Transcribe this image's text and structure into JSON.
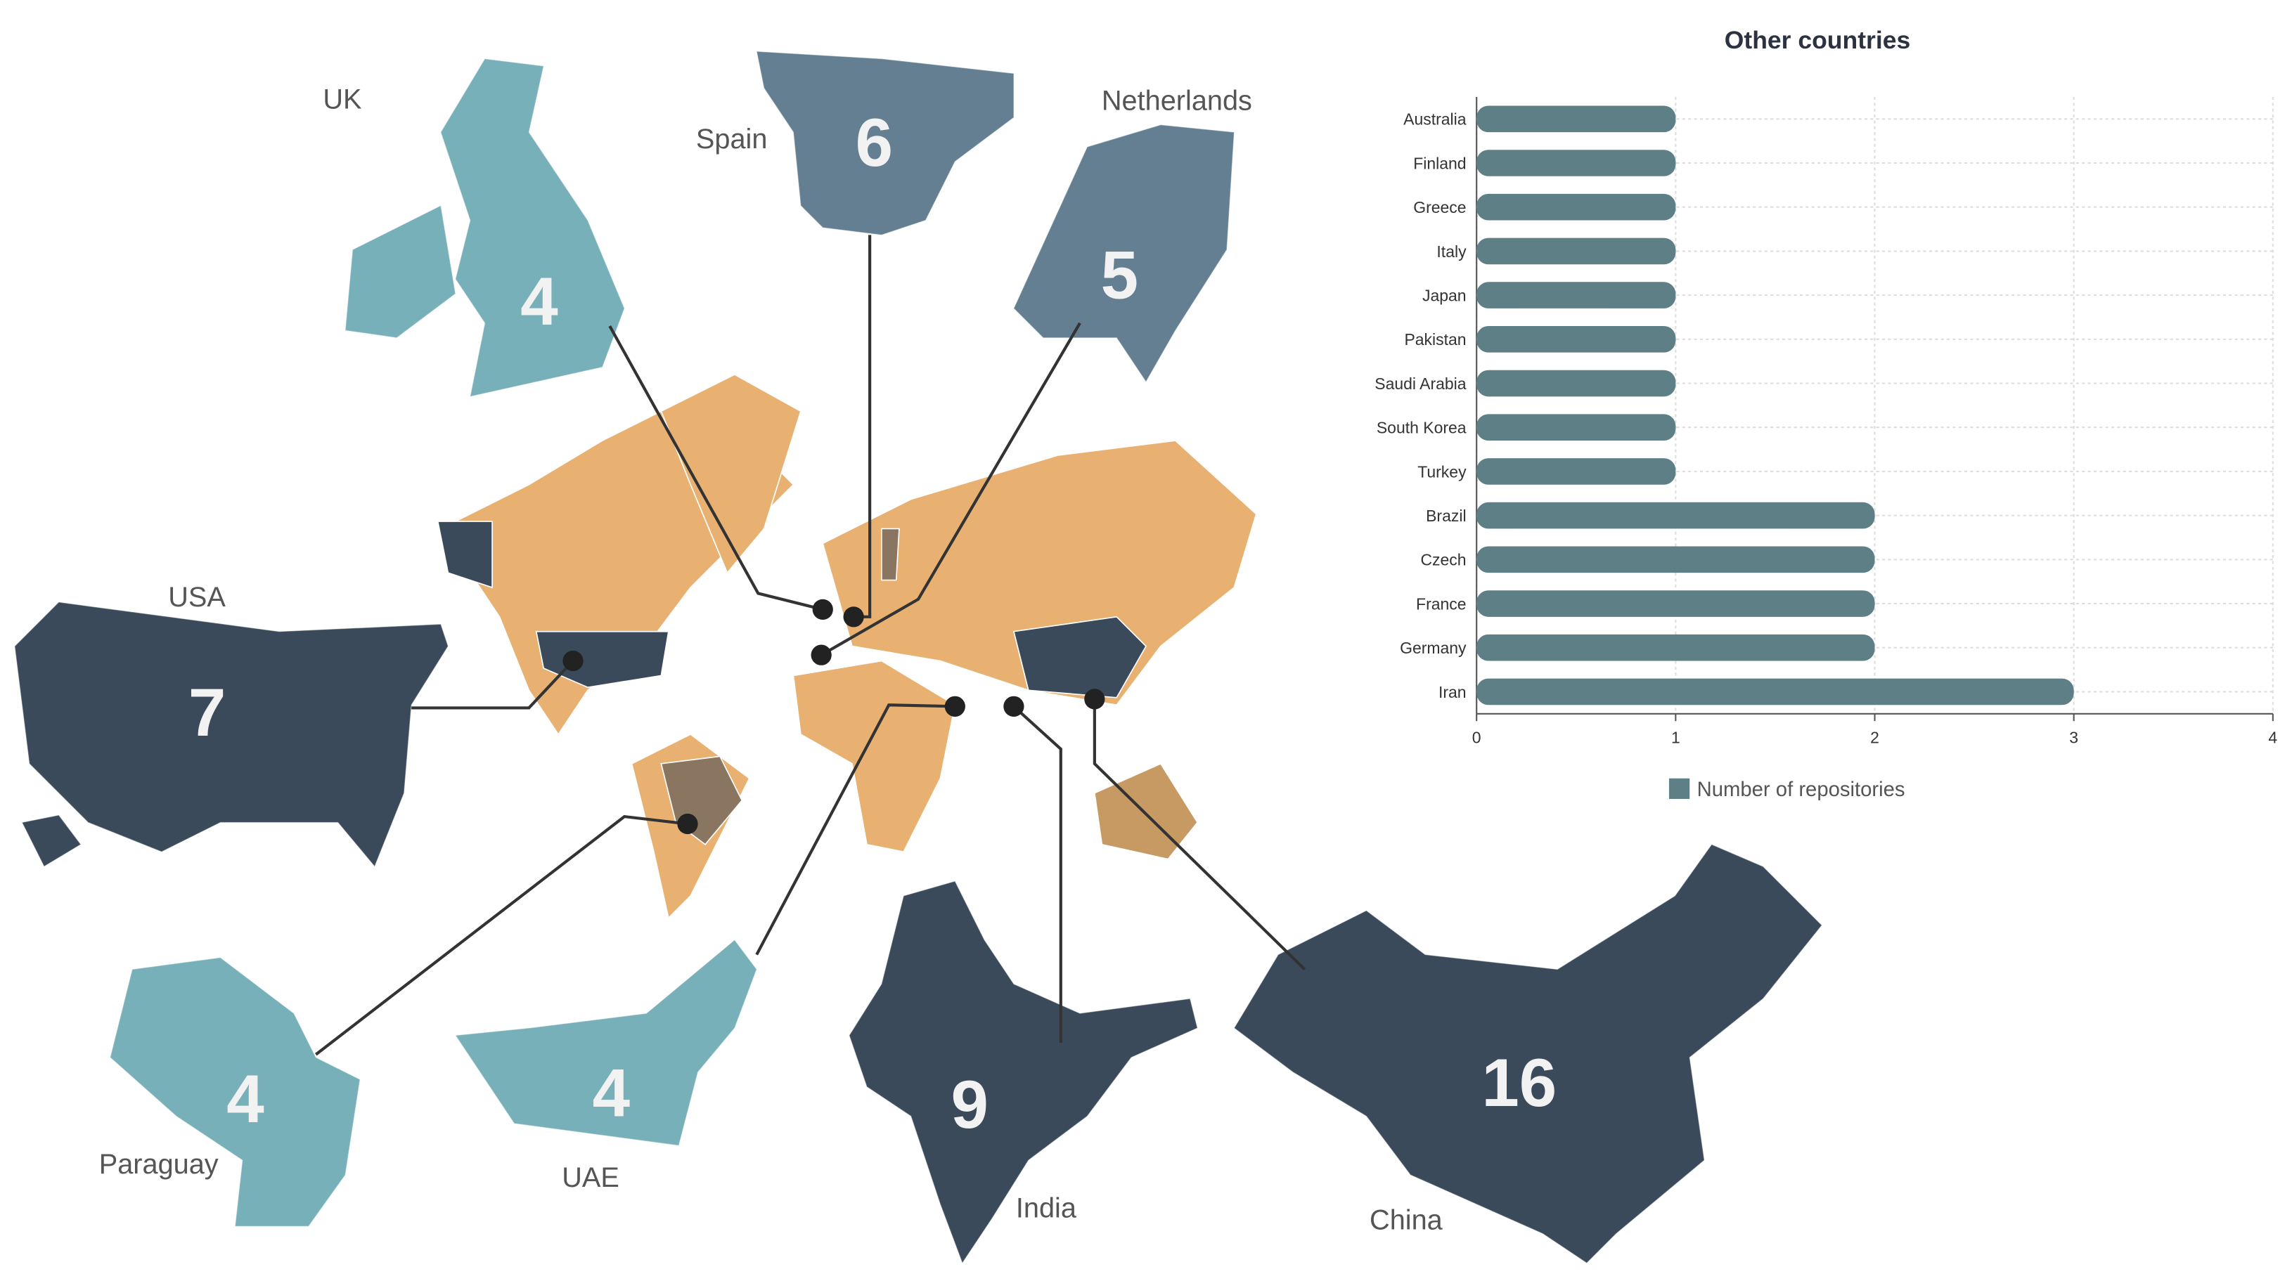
{
  "countries": [
    {
      "name": "UK",
      "count": 4
    },
    {
      "name": "Spain",
      "count": 6
    },
    {
      "name": "Netherlands",
      "count": 5
    },
    {
      "name": "USA",
      "count": 7
    },
    {
      "name": "Paraguay",
      "count": 4
    },
    {
      "name": "UAE",
      "count": 4
    },
    {
      "name": "India",
      "count": 9
    },
    {
      "name": "China",
      "count": 16
    }
  ],
  "chart_data": {
    "type": "bar",
    "orientation": "horizontal",
    "title": "Other countries",
    "categories": [
      "Australia",
      "Finland",
      "Greece",
      "Italy",
      "Japan",
      "Pakistan",
      "Saudi Arabia",
      "South Korea",
      "Turkey",
      "Brazil",
      "Czech",
      "France",
      "Germany",
      "Iran"
    ],
    "series": [
      {
        "name": "Number of repositories",
        "color": "#5f7f86",
        "values": [
          1,
          1,
          1,
          1,
          1,
          1,
          1,
          1,
          1,
          2,
          2,
          2,
          2,
          3
        ]
      }
    ],
    "xlim": [
      0,
      4
    ],
    "xticks": [
      0,
      1,
      2,
      3,
      4
    ],
    "grid": true
  }
}
